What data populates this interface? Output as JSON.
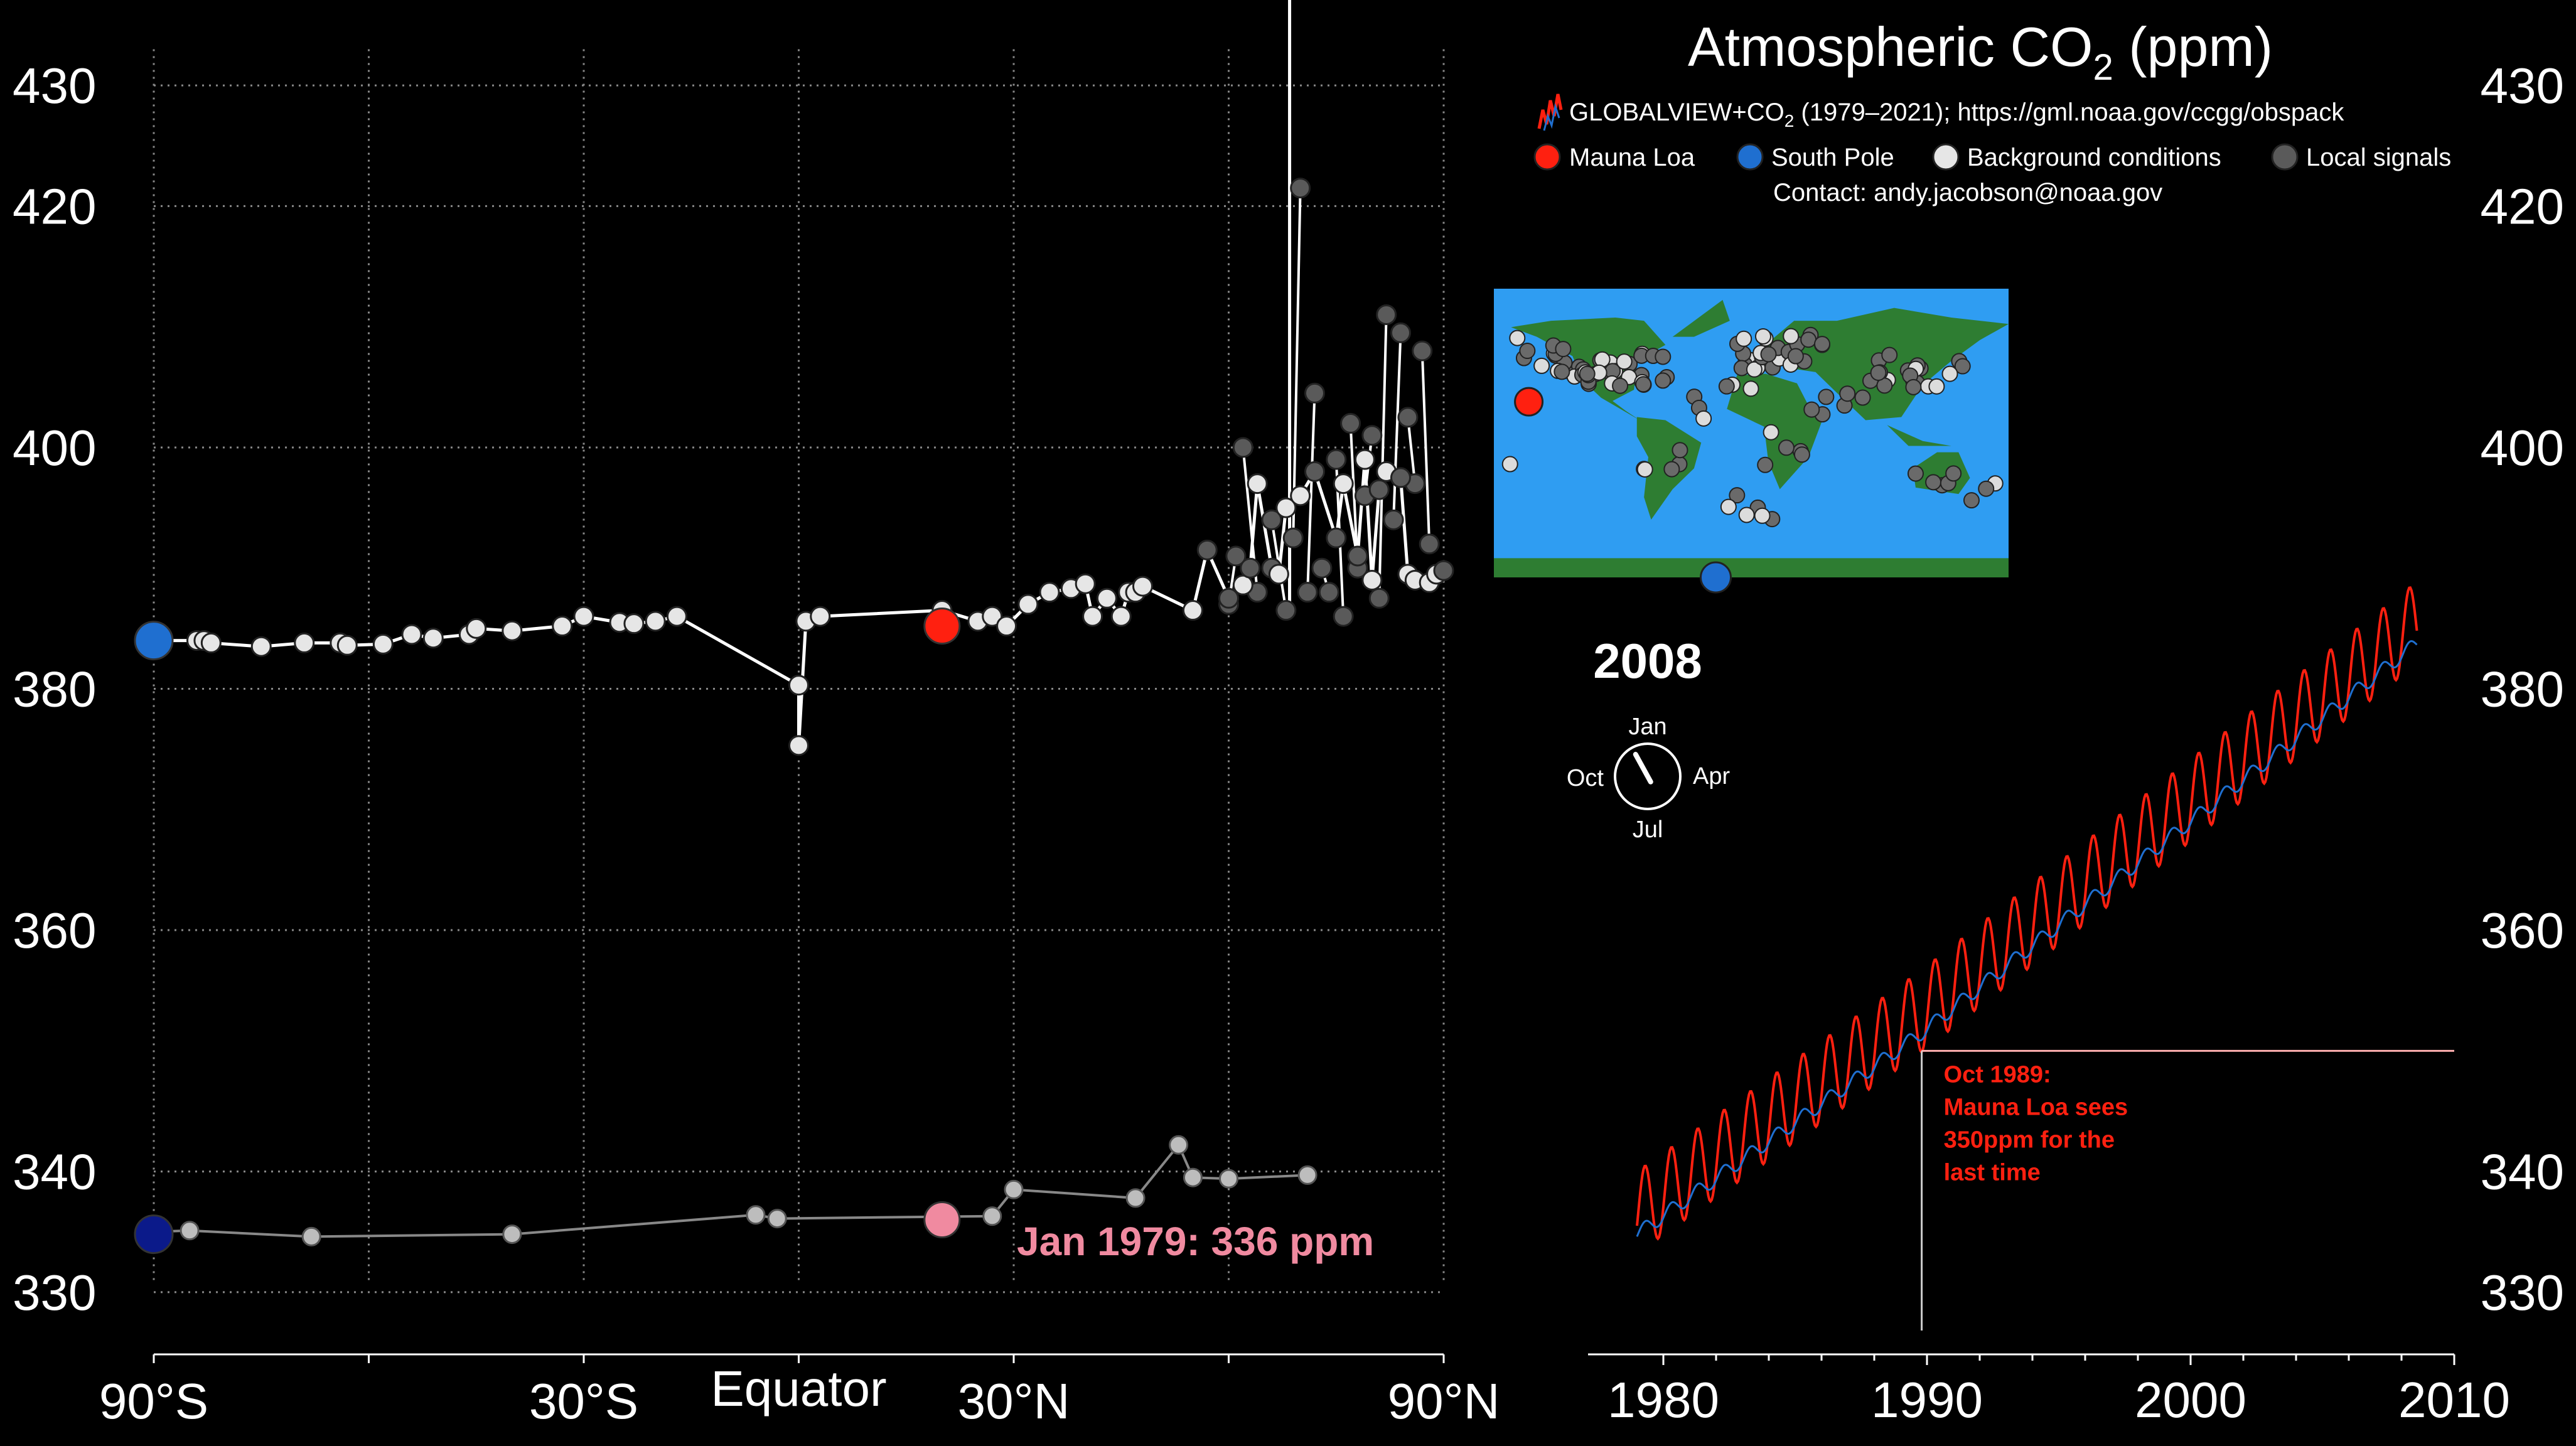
{
  "header": {
    "title_main": "Atmospheric CO",
    "title_sub": "2",
    "title_unit": " (ppm)",
    "source_prefix": "GLOBALVIEW+CO",
    "source_sub": "2",
    "source_suffix": " (1979–2021); https://gml.noaa.gov/ccgg/obspack",
    "contact": "Contact: andy.jacobson@noaa.gov"
  },
  "legend": [
    {
      "label": "Mauna Loa",
      "color": "#ff2010"
    },
    {
      "label": "South Pole",
      "color": "#1f6fd0"
    },
    {
      "label": "Background conditions",
      "color": "#e6e6e6"
    },
    {
      "label": "Local signals",
      "color": "#5a5a5a"
    }
  ],
  "colors": {
    "mauna_loa": "#ff2010",
    "south_pole": "#1f6fd0",
    "south_pole_1979": "#0b1a8a",
    "mauna_loa_1979": "#f08aa0",
    "annotation": "#ff2010",
    "map_ocean": "#2f9df2",
    "map_land": "#2e7d32"
  },
  "year_label": "2008",
  "clock": {
    "top": "Jan",
    "right": "Apr",
    "bottom": "Jul",
    "left": "Oct",
    "month_fraction": 0.08
  },
  "left_axis": {
    "ticks": [
      330,
      340,
      360,
      380,
      400,
      420,
      430
    ]
  },
  "right_axis": {
    "ticks": [
      330,
      340,
      360,
      380,
      400,
      420,
      430
    ]
  },
  "map_markers": {
    "mauna_loa": {
      "lat": 19.5,
      "lon": -155.6
    },
    "south_pole": {
      "lat": -90,
      "lon": -24.8
    }
  },
  "baseline_label": "Jan 1979: 336 ppm",
  "annotation": "Oct 1989:\nMauna Loa sees\n350ppm for the\nlast time",
  "chart_data": [
    {
      "type": "scatter",
      "title": "",
      "xlabel": "",
      "ylabel": "",
      "x_ticks": [
        {
          "value": -90,
          "label": "90°S"
        },
        {
          "value": -30,
          "label": "30°S"
        },
        {
          "value": 0,
          "label": "Equator"
        },
        {
          "value": 30,
          "label": "30°N"
        },
        {
          "value": 90,
          "label": "90°N"
        }
      ],
      "x_minor": [
        -90,
        -60,
        -30,
        0,
        30,
        60,
        90
      ],
      "xlim": [
        -90,
        90
      ],
      "ylim": [
        325,
        435
      ],
      "y_ticks": [
        330,
        340,
        360,
        380,
        400,
        420,
        430
      ],
      "series": [
        {
          "points": [
            [
              -90,
              384.0
            ],
            [
              -84,
              384.0
            ],
            [
              -83,
              384.0
            ],
            [
              -82,
              383.8
            ],
            [
              -75,
              383.5
            ],
            [
              -69,
              383.8
            ],
            [
              -64,
              383.8
            ],
            [
              -63,
              383.6
            ],
            [
              -58,
              383.7
            ],
            [
              -54,
              384.5
            ],
            [
              -51,
              384.2
            ],
            [
              -46,
              384.5
            ],
            [
              -45,
              385.0
            ],
            [
              -40,
              384.8
            ],
            [
              -33,
              385.2
            ],
            [
              -30,
              386.0
            ],
            [
              -25,
              385.5
            ],
            [
              -23,
              385.4
            ],
            [
              -20,
              385.6
            ],
            [
              -17,
              386.0
            ],
            [
              0,
              380.3
            ],
            [
              0,
              375.3
            ],
            [
              1,
              385.6
            ],
            [
              3,
              386.0
            ],
            [
              20,
              386.5
            ],
            [
              25,
              385.6
            ],
            [
              27,
              386.0
            ],
            [
              29,
              385.2
            ],
            [
              32,
              387.0
            ],
            [
              35,
              388.0
            ],
            [
              38,
              388.3
            ],
            [
              40,
              388.7
            ],
            [
              41,
              386.0
            ],
            [
              43,
              387.5
            ],
            [
              45,
              386.0
            ],
            [
              46,
              388.0
            ],
            [
              47,
              388.0
            ],
            [
              48,
              388.5
            ],
            [
              55,
              386.5
            ],
            [
              57,
              391.5
            ],
            [
              60,
              387.5
            ],
            [
              62,
              388.6
            ],
            [
              63,
              390.0
            ],
            [
              64,
              397.0
            ],
            [
              66,
              390.0
            ],
            [
              67,
              389.5
            ],
            [
              68,
              395.0
            ],
            [
              70,
              396.0
            ],
            [
              72,
              398.0
            ],
            [
              75,
              392.5
            ],
            [
              76,
              397.0
            ],
            [
              78,
              391.0
            ],
            [
              79,
              399.0
            ],
            [
              80,
              389.0
            ],
            [
              81,
              396.5
            ],
            [
              82,
              398.0
            ],
            [
              84,
              397.5
            ],
            [
              85,
              389.5
            ],
            [
              86,
              389.0
            ],
            [
              88,
              388.8
            ],
            [
              89,
              389.5
            ],
            [
              90,
              389.8
            ]
          ]
        },
        {
          "points": [
            [
              60,
              387.0
            ],
            [
              61,
              391.0
            ],
            [
              62,
              400.0
            ],
            [
              64,
              388.0
            ],
            [
              66,
              394.0
            ],
            [
              68,
              386.5
            ],
            [
              69,
              392.5
            ],
            [
              70,
              421.5
            ],
            [
              71,
              388.0
            ],
            [
              72,
              404.5
            ],
            [
              73,
              390.0
            ],
            [
              74,
              388.0
            ],
            [
              75,
              399.0
            ],
            [
              76,
              386.0
            ],
            [
              77,
              402.0
            ],
            [
              78,
              390.0
            ],
            [
              79,
              396.0
            ],
            [
              80,
              401.0
            ],
            [
              81,
              387.5
            ],
            [
              82,
              411.0
            ],
            [
              83,
              394.0
            ],
            [
              84,
              409.5
            ],
            [
              85,
              402.5
            ],
            [
              86,
              397.0
            ],
            [
              87,
              408.0
            ],
            [
              88,
              392.0
            ]
          ]
        },
        {
          "points": [
            [
              -90,
              335.0
            ],
            [
              -85,
              335.1
            ],
            [
              -68,
              334.6
            ],
            [
              -40,
              334.8
            ],
            [
              -6,
              336.4
            ],
            [
              -3,
              336.1
            ],
            [
              27,
              336.3
            ],
            [
              30,
              338.5
            ],
            [
              47,
              337.8
            ],
            [
              53,
              342.2
            ],
            [
              55,
              339.5
            ],
            [
              60,
              339.4
            ],
            [
              71,
              339.7
            ]
          ]
        }
      ],
      "mauna_loa_marker": [
        20,
        385.2
      ],
      "south_pole_marker": [
        -90,
        384.0
      ],
      "mauna_loa_1979_marker": [
        20,
        336.0
      ],
      "south_pole_1979_marker": [
        -90,
        334.8
      ]
    },
    {
      "type": "line",
      "title": "",
      "xlabel": "",
      "ylabel": "",
      "x_ticks": [
        1980,
        1990,
        2000,
        2010
      ],
      "x_minor": [
        1980,
        1982,
        1984,
        1986,
        1988,
        1990,
        1992,
        1994,
        1996,
        1998,
        2000,
        2002,
        2004,
        2006,
        2008,
        2010
      ],
      "xlim": [
        1980,
        2010
      ],
      "ylim": [
        325,
        435
      ],
      "y_ticks": [
        330,
        340,
        360,
        380,
        400,
        420,
        430
      ],
      "series": [
        {
          "name": "Mauna Loa",
          "trend": [
            [
              1979.0,
              336.6
            ],
            [
              1989.8,
              353.3
            ],
            [
              2008.6,
              385.5
            ]
          ],
          "seasonal_amplitude": 3.4
        },
        {
          "name": "South Pole",
          "trend": [
            [
              1979.0,
              334.8
            ],
            [
              1989.8,
              351.5
            ],
            [
              2008.6,
              383.8
            ]
          ],
          "seasonal_amplitude": 0.6
        }
      ],
      "reference_line_ppm": 350,
      "reference_line_year": 1989.8
    }
  ]
}
